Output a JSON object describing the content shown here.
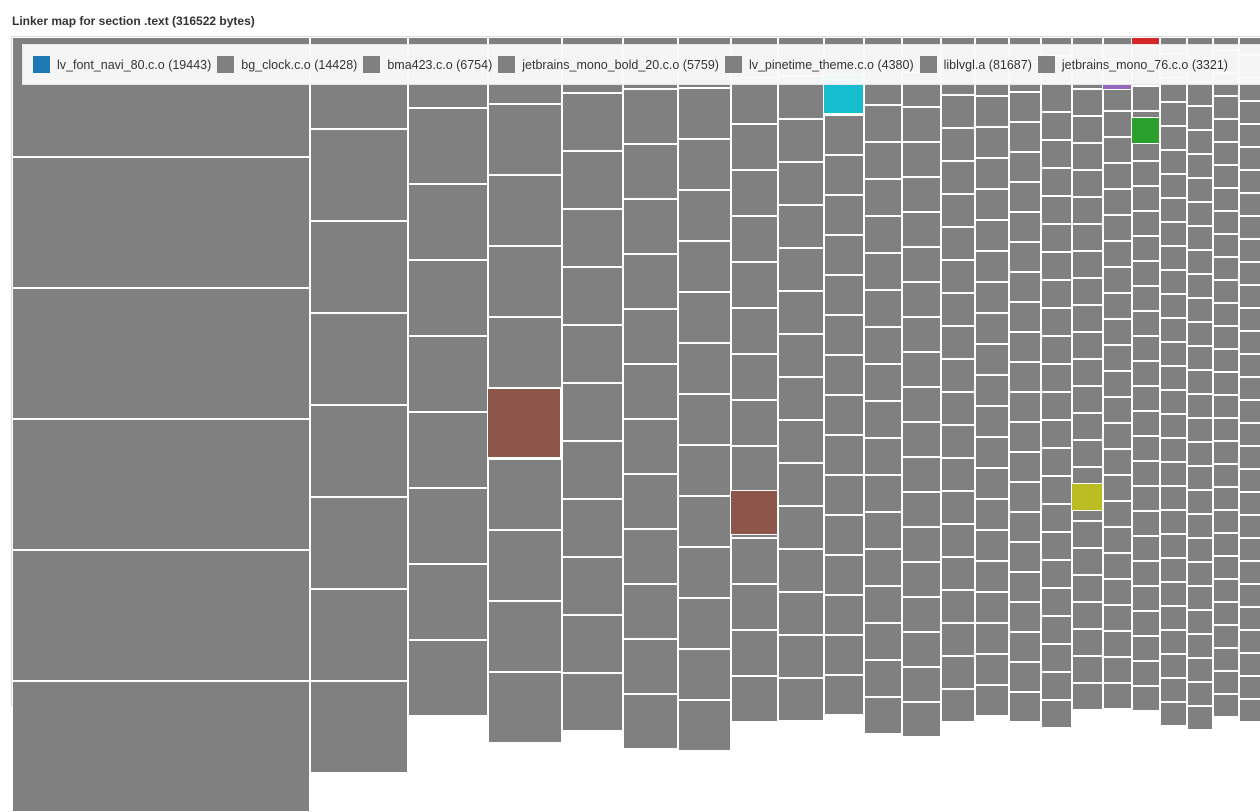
{
  "title": "Linker map for section .text (316522 bytes)",
  "chart_data": {
    "type": "treemap",
    "title": "Linker map for section .text (316522 bytes)",
    "legend_placement": "top",
    "legend": [
      {
        "name": "lv_font_navi_80.c.o",
        "value": 19443,
        "label": "lv_font_navi_80.c.o (19443)",
        "color": "#1f77b4"
      },
      {
        "name": "bg_clock.c.o",
        "value": 14428,
        "label": "bg_clock.c.o (14428)",
        "color": "#808080"
      },
      {
        "name": "bma423.c.o",
        "value": 6754,
        "label": "bma423.c.o (6754)",
        "color": "#808080"
      },
      {
        "name": "jetbrains_mono_bold_20.c.o",
        "value": 5759,
        "label": "jetbrains_mono_bold_20.c.o (5759)",
        "color": "#808080"
      },
      {
        "name": "lv_pinetime_theme.c.o",
        "value": 4380,
        "label": "lv_pinetime_theme.c.o (4380)",
        "color": "#808080"
      },
      {
        "name": "liblvgl.a",
        "value": 81687,
        "label": "liblvgl.a (81687)",
        "color": "#808080"
      },
      {
        "name": "jetbrains_mono_76.c.o",
        "value": 3321,
        "label": "jetbrains_mono_76.c.o (3321)",
        "color": "#808080"
      }
    ],
    "default_cell_color": "#808080",
    "highlight_colors": [
      "#8c564b",
      "#17becf",
      "#bcbd22",
      "#2ca02c",
      "#d62728",
      "#9467bd"
    ]
  }
}
